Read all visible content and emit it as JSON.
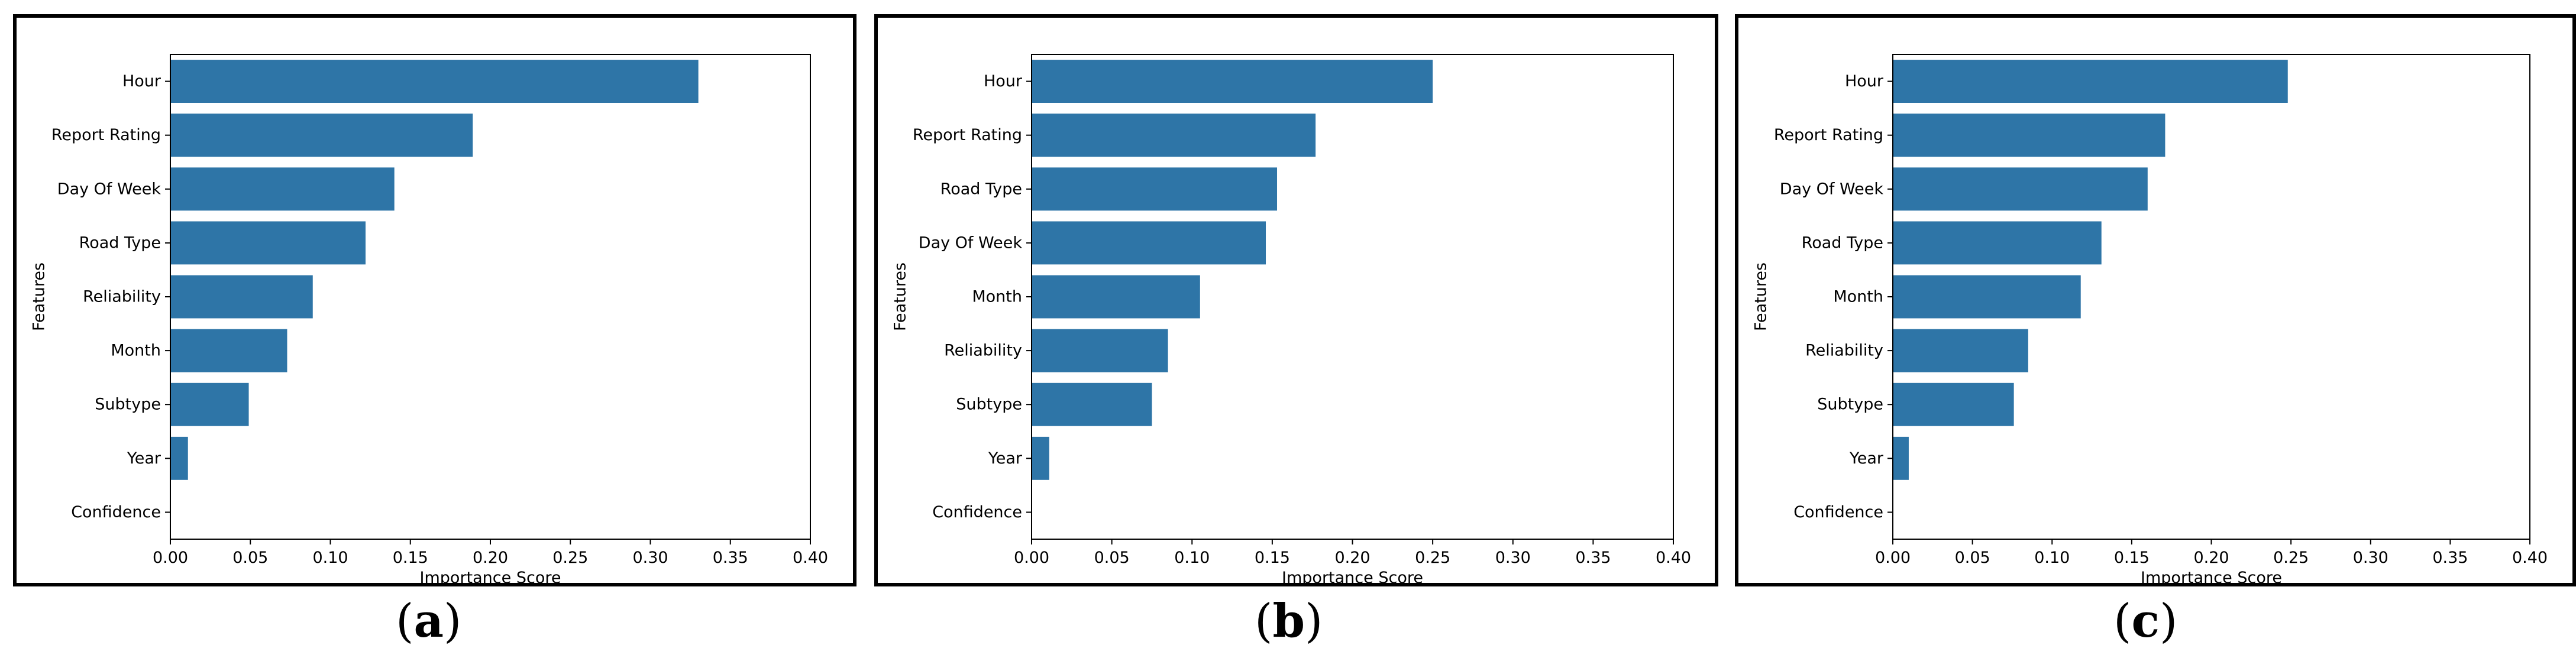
{
  "theme": {
    "bar_color": "#2e75a7",
    "axis_color": "#000000",
    "text_color": "#000000"
  },
  "chart_data": [
    {
      "id": "a",
      "type": "bar",
      "orientation": "horizontal",
      "caption": {
        "open": "(",
        "letter": "a",
        "close": ")"
      },
      "xlabel": "Importance Score",
      "ylabel": "Features",
      "xlim": [
        0,
        0.4
      ],
      "xticks": [
        "0.00",
        "0.05",
        "0.10",
        "0.15",
        "0.20",
        "0.25",
        "0.30",
        "0.35",
        "0.40"
      ],
      "grid": false,
      "categories": [
        "Hour",
        "Report Rating",
        "Day Of Week",
        "Road Type",
        "Reliability",
        "Month",
        "Subtype",
        "Year",
        "Confidence"
      ],
      "values": [
        0.33,
        0.189,
        0.14,
        0.122,
        0.089,
        0.073,
        0.049,
        0.011,
        0.0
      ]
    },
    {
      "id": "b",
      "type": "bar",
      "orientation": "horizontal",
      "caption": {
        "open": "(",
        "letter": "b",
        "close": ")"
      },
      "xlabel": "Importance Score",
      "ylabel": "Features",
      "xlim": [
        0,
        0.4
      ],
      "xticks": [
        "0.00",
        "0.05",
        "0.10",
        "0.15",
        "0.20",
        "0.25",
        "0.30",
        "0.35",
        "0.40"
      ],
      "grid": false,
      "categories": [
        "Hour",
        "Report Rating",
        "Road Type",
        "Day Of Week",
        "Month",
        "Reliability",
        "Subtype",
        "Year",
        "Confidence"
      ],
      "values": [
        0.25,
        0.177,
        0.153,
        0.146,
        0.105,
        0.085,
        0.075,
        0.011,
        0.0
      ]
    },
    {
      "id": "c",
      "type": "bar",
      "orientation": "horizontal",
      "caption": {
        "open": "(",
        "letter": "c",
        "close": ")"
      },
      "xlabel": "Importance Score",
      "ylabel": "Features",
      "xlim": [
        0,
        0.4
      ],
      "xticks": [
        "0.00",
        "0.05",
        "0.10",
        "0.15",
        "0.20",
        "0.25",
        "0.30",
        "0.35",
        "0.40"
      ],
      "grid": false,
      "categories": [
        "Hour",
        "Report Rating",
        "Day Of Week",
        "Road Type",
        "Month",
        "Reliability",
        "Subtype",
        "Year",
        "Confidence"
      ],
      "values": [
        0.248,
        0.171,
        0.16,
        0.131,
        0.118,
        0.085,
        0.076,
        0.01,
        0.0
      ]
    }
  ]
}
